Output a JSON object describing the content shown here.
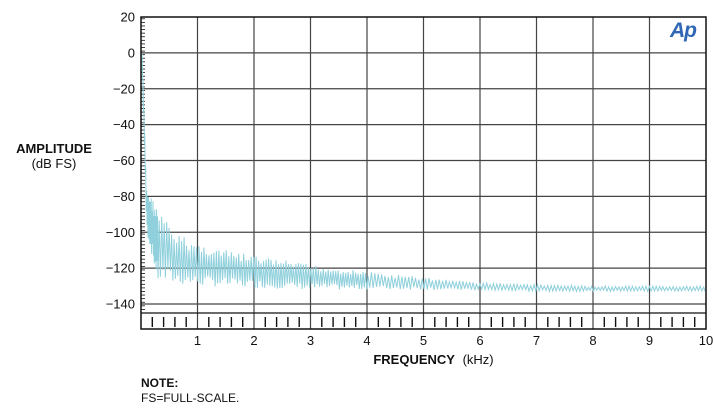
{
  "brand": {
    "logo_text": "Ap",
    "logo_color": "#2f67b5"
  },
  "note": {
    "title": "NOTE:",
    "text": "FS=FULL-SCALE."
  },
  "chart_data": {
    "type": "line",
    "xlabel_main": "FREQUENCY",
    "xlabel_unit": "(kHz)",
    "ylabel_main": "AMPLITUDE",
    "ylabel_unit": "(dB FS)",
    "xlim": [
      0,
      10
    ],
    "ylim": [
      -145,
      20
    ],
    "x_ticks": [
      1,
      2,
      3,
      4,
      5,
      6,
      7,
      8,
      9,
      10
    ],
    "y_ticks": [
      20,
      0,
      -20,
      -40,
      -60,
      -80,
      -100,
      -120,
      -140
    ],
    "y_tick_labels": [
      "20",
      "0",
      "−20",
      "−40",
      "−60",
      "−80",
      "−100",
      "−120",
      "−140"
    ],
    "grid": true,
    "line_color": "#8fd0dc",
    "series": [
      {
        "envelope_upper": [
          {
            "x": 0.02,
            "y": 0
          },
          {
            "x": 0.1,
            "y": -75
          },
          {
            "x": 0.3,
            "y": -87
          },
          {
            "x": 0.6,
            "y": -100
          },
          {
            "x": 1.0,
            "y": -106
          },
          {
            "x": 1.5,
            "y": -110
          },
          {
            "x": 2.0,
            "y": -113
          },
          {
            "x": 3.0,
            "y": -118
          },
          {
            "x": 4.0,
            "y": -122
          },
          {
            "x": 5.0,
            "y": -125
          },
          {
            "x": 6.0,
            "y": -128
          },
          {
            "x": 7.0,
            "y": -129
          },
          {
            "x": 8.0,
            "y": -130
          },
          {
            "x": 9.0,
            "y": -130
          },
          {
            "x": 10.0,
            "y": -130
          }
        ],
        "envelope_lower": [
          {
            "x": 0.02,
            "y": -5
          },
          {
            "x": 0.1,
            "y": -100
          },
          {
            "x": 0.3,
            "y": -128
          },
          {
            "x": 1.0,
            "y": -130
          },
          {
            "x": 3.0,
            "y": -132
          },
          {
            "x": 5.0,
            "y": -132
          },
          {
            "x": 7.0,
            "y": -133
          },
          {
            "x": 10.0,
            "y": -133
          }
        ]
      }
    ]
  }
}
